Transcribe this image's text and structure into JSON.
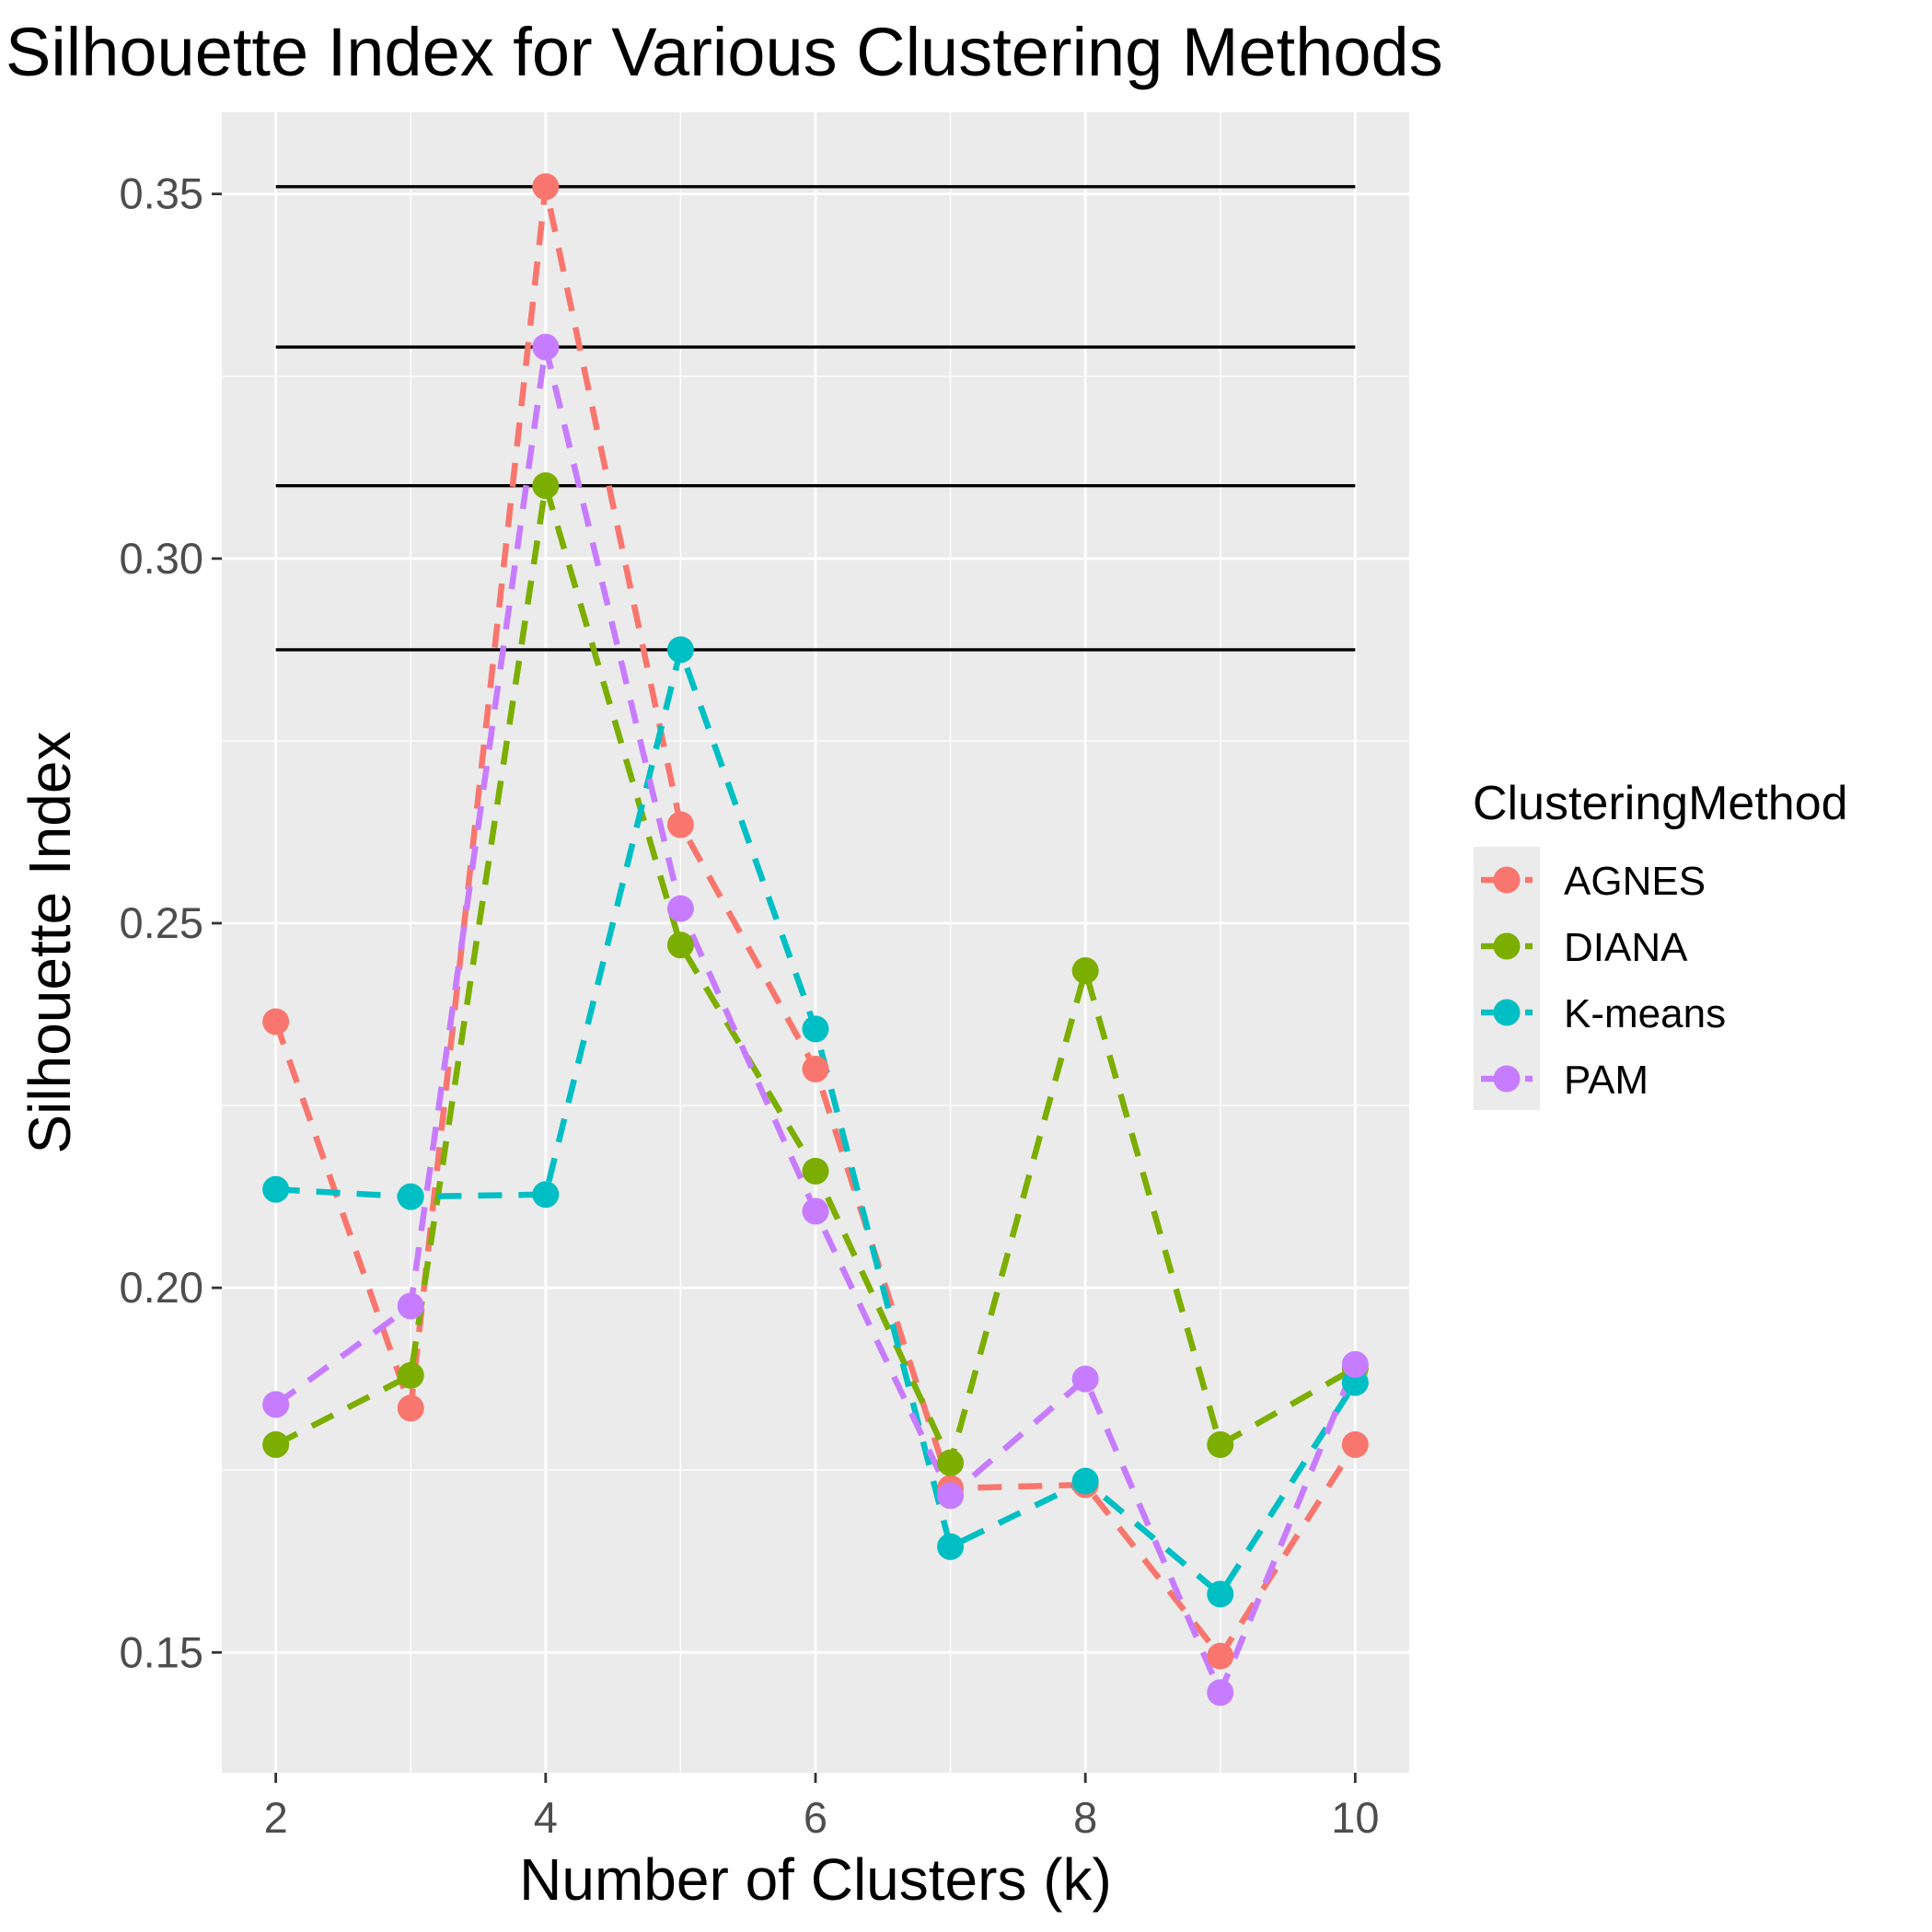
{
  "chart_data": {
    "type": "line",
    "title": "Silhouette Index for Various Clustering Methods",
    "xlabel": "Number of Clusters (k)",
    "ylabel": "Silhouette Index",
    "x": [
      2,
      3,
      4,
      5,
      6,
      7,
      8,
      9,
      10
    ],
    "x_ticks": [
      "2",
      "4",
      "6",
      "8",
      "10"
    ],
    "y_ticks": [
      "0.15",
      "0.20",
      "0.25",
      "0.30",
      "0.35"
    ],
    "xlim": [
      1.6,
      10.4
    ],
    "ylim": [
      0.1335,
      0.3612
    ],
    "grid": true,
    "panel_background": "#ebebeb",
    "line_style": "dashed",
    "legend": {
      "title": "ClusteringMethod",
      "position": "right"
    },
    "series": [
      {
        "name": "AGNES",
        "color": "#f8766d",
        "values": [
          0.2365,
          0.1835,
          0.351,
          0.2635,
          0.23,
          0.1725,
          0.173,
          0.1495,
          0.1785
        ]
      },
      {
        "name": "DIANA",
        "color": "#7cae00",
        "values": [
          0.1785,
          0.188,
          0.31,
          0.247,
          0.216,
          0.176,
          0.2435,
          0.1785,
          0.189
        ]
      },
      {
        "name": "K-means",
        "color": "#00bfc4",
        "values": [
          0.2135,
          0.2125,
          0.2128,
          0.2875,
          0.2355,
          0.1645,
          0.1735,
          0.158,
          0.187
        ]
      },
      {
        "name": "PAM",
        "color": "#c77cff",
        "values": [
          0.184,
          0.1975,
          0.329,
          0.252,
          0.2105,
          0.1715,
          0.1875,
          0.1445,
          0.1895
        ]
      }
    ],
    "reference_lines": [
      0.351,
      0.329,
      0.31,
      0.2875
    ],
    "reference_line_color": "#000000"
  }
}
